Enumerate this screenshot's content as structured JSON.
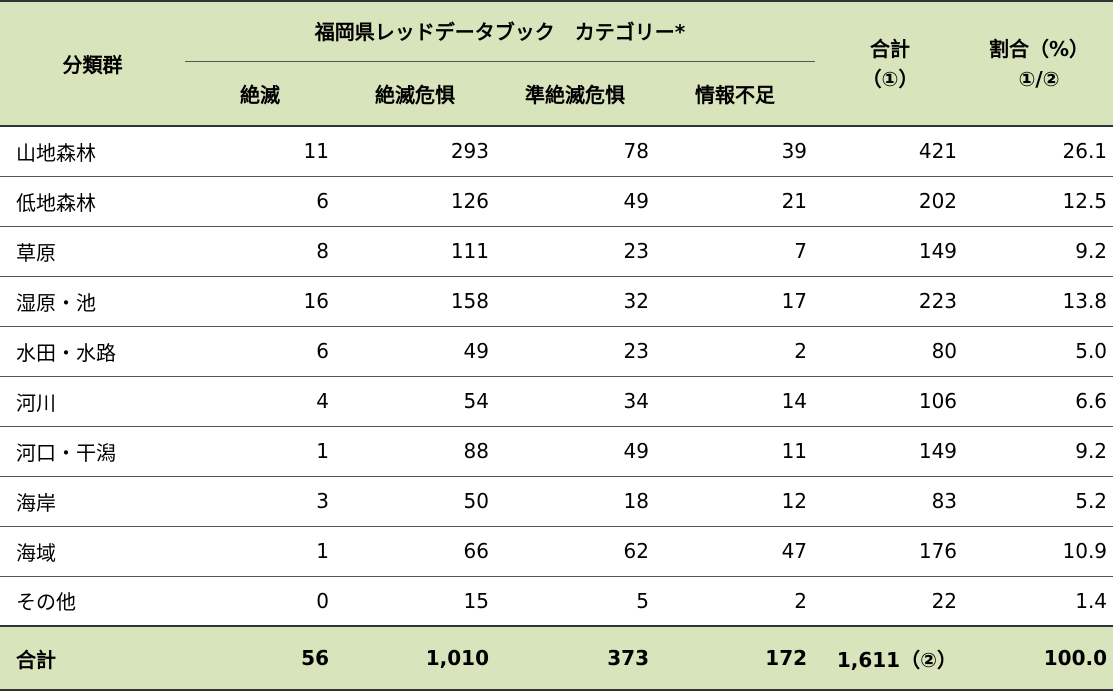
{
  "headers": {
    "group": "分類群",
    "category_group": "福岡県レッドデータブック　カテゴリー*",
    "categories": [
      "絶滅",
      "絶滅危惧",
      "準絶滅危惧",
      "情報不足"
    ],
    "total_line1": "合計",
    "total_line2": "（①）",
    "ratio_line1": "割合（%）",
    "ratio_line2": "①/②"
  },
  "rows": [
    {
      "name": "山地森林",
      "extinct": "11",
      "endangered": "293",
      "near": "78",
      "dd": "39",
      "total": "421",
      "ratio": "26.1"
    },
    {
      "name": "低地森林",
      "extinct": "6",
      "endangered": "126",
      "near": "49",
      "dd": "21",
      "total": "202",
      "ratio": "12.5"
    },
    {
      "name": "草原",
      "extinct": "8",
      "endangered": "111",
      "near": "23",
      "dd": "7",
      "total": "149",
      "ratio": "9.2"
    },
    {
      "name": "湿原・池",
      "extinct": "16",
      "endangered": "158",
      "near": "32",
      "dd": "17",
      "total": "223",
      "ratio": "13.8"
    },
    {
      "name": "水田・水路",
      "extinct": "6",
      "endangered": "49",
      "near": "23",
      "dd": "2",
      "total": "80",
      "ratio": "5.0"
    },
    {
      "name": "河川",
      "extinct": "4",
      "endangered": "54",
      "near": "34",
      "dd": "14",
      "total": "106",
      "ratio": "6.6"
    },
    {
      "name": "河口・干潟",
      "extinct": "1",
      "endangered": "88",
      "near": "49",
      "dd": "11",
      "total": "149",
      "ratio": "9.2"
    },
    {
      "name": "海岸",
      "extinct": "3",
      "endangered": "50",
      "near": "18",
      "dd": "12",
      "total": "83",
      "ratio": "5.2"
    },
    {
      "name": "海域",
      "extinct": "1",
      "endangered": "66",
      "near": "62",
      "dd": "47",
      "total": "176",
      "ratio": "10.9"
    },
    {
      "name": "その他",
      "extinct": "0",
      "endangered": "15",
      "near": "5",
      "dd": "2",
      "total": "22",
      "ratio": "1.4"
    }
  ],
  "footer": {
    "name": "合計",
    "extinct": "56",
    "endangered": "1,010",
    "near": "373",
    "dd": "172",
    "total": "1,611（②）",
    "ratio": "100.0"
  },
  "colors": {
    "header_bg": "#d8e4bc"
  }
}
